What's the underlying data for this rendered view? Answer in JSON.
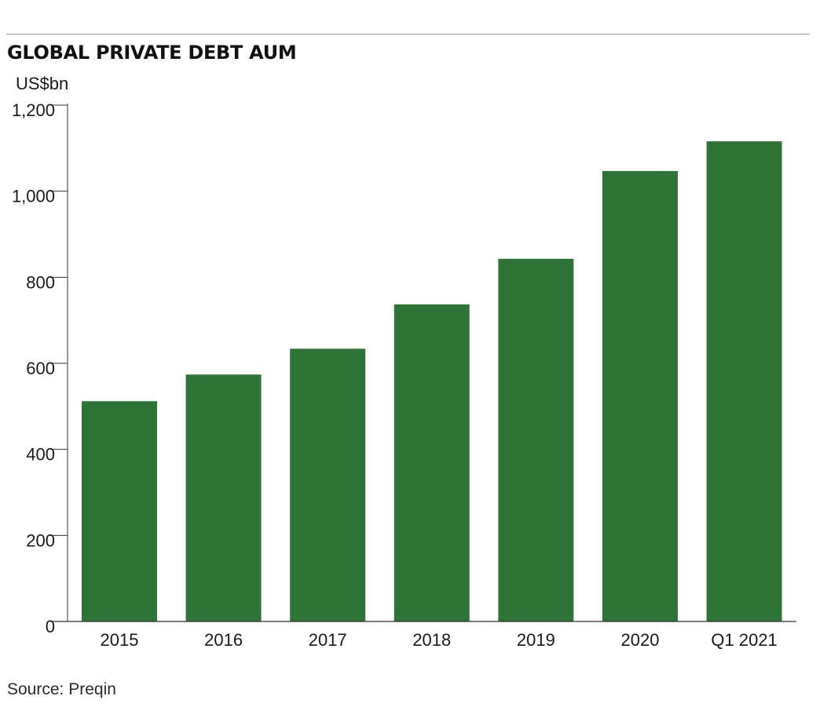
{
  "header": {
    "title": "GLOBAL PRIVATE DEBT AUM",
    "unit": "US$bn"
  },
  "footer": {
    "source": "Source: Preqin"
  },
  "chart_data": {
    "type": "bar",
    "categories": [
      "2015",
      "2016",
      "2017",
      "2018",
      "2019",
      "2020",
      "Q1 2021"
    ],
    "values": [
      512,
      574,
      634,
      737,
      843,
      1047,
      1116
    ],
    "ylabel": "US$bn",
    "ylim": [
      0,
      1200
    ],
    "yticks": [
      0,
      200,
      400,
      600,
      800,
      1000,
      1200
    ],
    "ytick_labels": [
      "0",
      "200",
      "400",
      "600",
      "800",
      "1,000",
      "1,200"
    ],
    "grid": false,
    "legend": "none",
    "bar_color": "#2e7436",
    "axis_color": "#333333"
  }
}
